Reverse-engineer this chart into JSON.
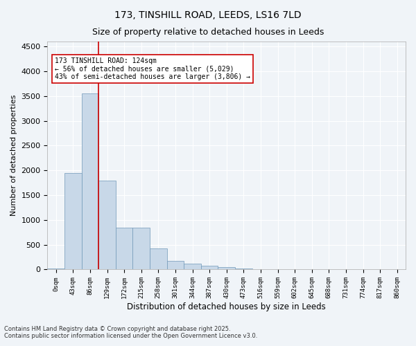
{
  "title1": "173, TINSHILL ROAD, LEEDS, LS16 7LD",
  "title2": "Size of property relative to detached houses in Leeds",
  "xlabel": "Distribution of detached houses by size in Leeds",
  "ylabel": "Number of detached properties",
  "annotation_line1": "173 TINSHILL ROAD: 124sqm",
  "annotation_line2": "← 56% of detached houses are smaller (5,029)",
  "annotation_line3": "43% of semi-detached houses are larger (3,806) →",
  "footer1": "Contains HM Land Registry data © Crown copyright and database right 2025.",
  "footer2": "Contains public sector information licensed under the Open Government Licence v3.0.",
  "bar_color": "#c8d8e8",
  "bar_edge_color": "#7098b8",
  "vline_color": "#cc0000",
  "vline_x": 3,
  "annotation_box_color": "#ffffff",
  "annotation_box_edge": "#cc0000",
  "background_color": "#f0f4f8",
  "grid_color": "#ffffff",
  "categories": [
    "0sqm",
    "43sqm",
    "86sqm",
    "129sqm",
    "172sqm",
    "215sqm",
    "258sqm",
    "301sqm",
    "344sqm",
    "387sqm",
    "430sqm",
    "473sqm",
    "516sqm",
    "559sqm",
    "602sqm",
    "645sqm",
    "688sqm",
    "731sqm",
    "774sqm",
    "817sqm",
    "860sqm"
  ],
  "values": [
    20,
    1950,
    3550,
    1800,
    850,
    850,
    430,
    175,
    120,
    75,
    45,
    20,
    8,
    4,
    3,
    2,
    1,
    1,
    1,
    0,
    0
  ],
  "ylim": [
    0,
    4600
  ],
  "yticks": [
    0,
    500,
    1000,
    1500,
    2000,
    2500,
    3000,
    3500,
    4000,
    4500
  ]
}
